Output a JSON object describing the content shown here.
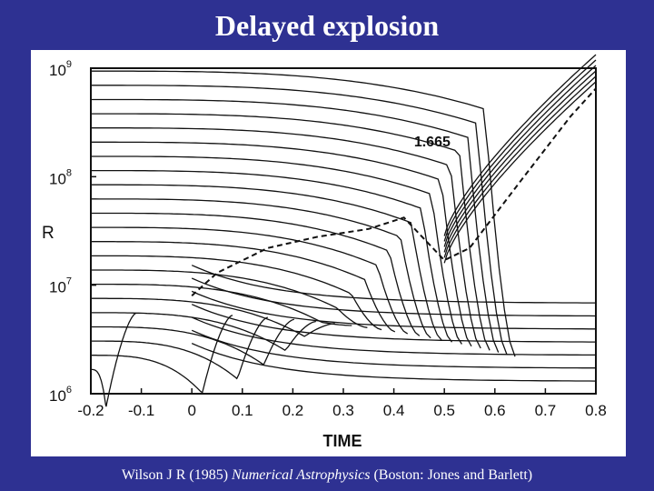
{
  "slide": {
    "title": "Delayed explosion",
    "caption": {
      "prefix": "Wilson J R (1985) ",
      "journal": "Numerical Astrophysics",
      "suffix": " (Boston: Jones and Barlett)"
    }
  },
  "chart_data": {
    "type": "line",
    "xlabel": "TIME",
    "ylabel": "R",
    "x_range": [
      -0.2,
      0.8
    ],
    "y_range": [
      1000000,
      1000000000
    ],
    "y_scale": "log",
    "x_ticks": [
      {
        "value": -0.2,
        "label": "-0.2"
      },
      {
        "value": -0.1,
        "label": "-0.1"
      },
      {
        "value": 0,
        "label": "0"
      },
      {
        "value": 0.1,
        "label": "0.1"
      },
      {
        "value": 0.2,
        "label": "0.2"
      },
      {
        "value": 0.3,
        "label": "0.3"
      },
      {
        "value": 0.4,
        "label": "0.4"
      },
      {
        "value": 0.5,
        "label": "0.5"
      },
      {
        "value": 0.6,
        "label": "0.6"
      },
      {
        "value": 0.7,
        "label": "0.7"
      },
      {
        "value": 0.8,
        "label": "0.8"
      }
    ],
    "y_ticks": [
      {
        "value": 1000000,
        "base": "10",
        "exp": "6"
      },
      {
        "value": 10000000,
        "base": "10",
        "exp": "7"
      },
      {
        "value": 100000000,
        "base": "10",
        "exp": "8"
      },
      {
        "value": 1000000000,
        "base": "10",
        "exp": "9"
      }
    ],
    "annotations": [
      {
        "text": "1.665",
        "x": 0.44,
        "y": 190000000
      }
    ],
    "grid": false,
    "legend": "none",
    "color": "#111111"
  }
}
